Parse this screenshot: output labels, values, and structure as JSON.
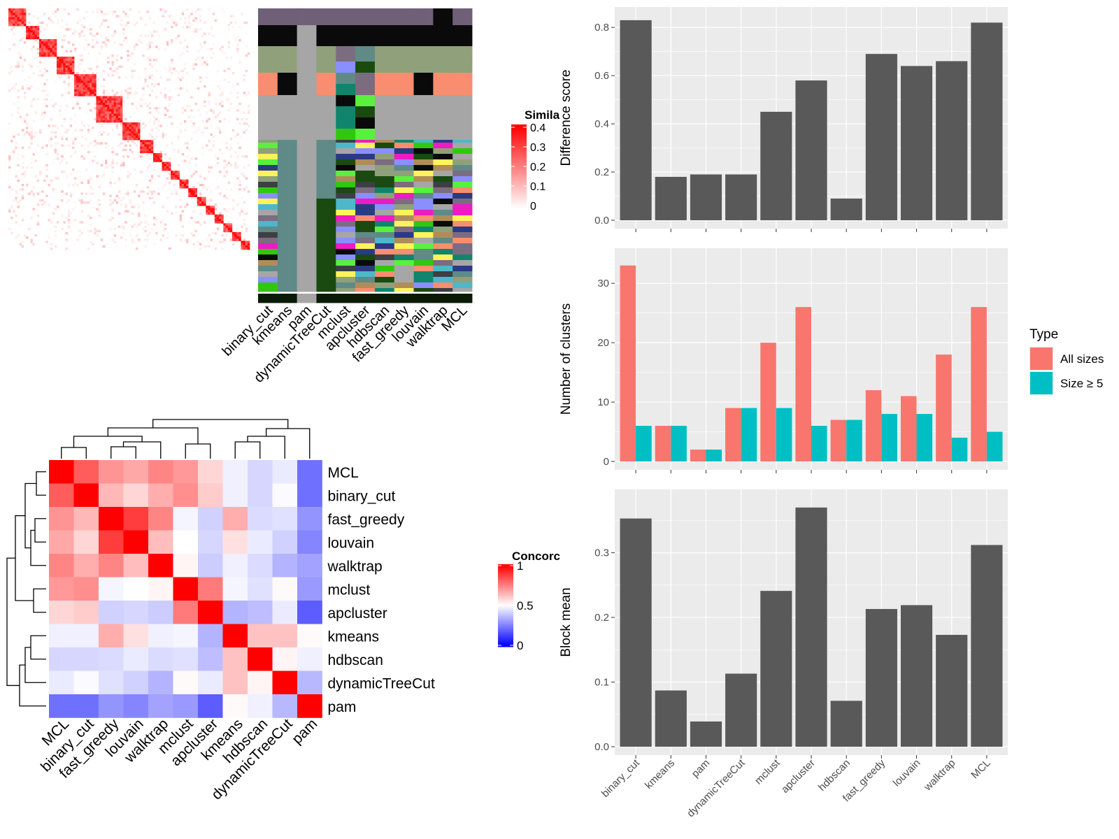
{
  "similarity_legend": {
    "title": "Simila",
    "ticks": [
      "0.4",
      "0.3",
      "0.2",
      "0.1",
      "0"
    ]
  },
  "concordance_legend": {
    "title": "Concorc",
    "ticks": [
      "1",
      "0.5",
      "0"
    ]
  },
  "methods_top": [
    "binary_cut",
    "kmeans",
    "pam",
    "dynamicTreeCut",
    "mclust",
    "apcluster",
    "hdbscan",
    "fast_greedy",
    "louvain",
    "walktrap",
    "MCL"
  ],
  "methods_heatmap": [
    "MCL",
    "binary_cut",
    "fast_greedy",
    "louvain",
    "walktrap",
    "mclust",
    "apcluster",
    "kmeans",
    "hdbscan",
    "dynamicTreeCut",
    "pam"
  ],
  "type_legend": {
    "title": "Type",
    "entries": [
      {
        "label": "All sizes",
        "color": "#F8766D"
      },
      {
        "label": "Size ≥ 5",
        "color": "#00BFC4"
      }
    ]
  },
  "chart_data": [
    {
      "type": "bar",
      "categories": [
        "binary_cut",
        "kmeans",
        "pam",
        "dynamicTreeCut",
        "mclust",
        "apcluster",
        "hdbscan",
        "fast_greedy",
        "louvain",
        "walktrap",
        "MCL"
      ],
      "values": [
        0.83,
        0.18,
        0.19,
        0.19,
        0.45,
        0.58,
        0.09,
        0.69,
        0.64,
        0.66,
        0.82
      ],
      "ylabel": "Difference score",
      "ylim": [
        0,
        0.85
      ],
      "yticks": [
        "0.0",
        "0.2",
        "0.4",
        "0.6",
        "0.8"
      ],
      "color": "#595959"
    },
    {
      "type": "bar",
      "categories": [
        "binary_cut",
        "kmeans",
        "pam",
        "dynamicTreeCut",
        "mclust",
        "apcluster",
        "hdbscan",
        "fast_greedy",
        "louvain",
        "walktrap",
        "MCL"
      ],
      "series": [
        {
          "name": "All sizes",
          "values": [
            33,
            6,
            2,
            9,
            20,
            26,
            7,
            12,
            11,
            18,
            26
          ]
        },
        {
          "name": "Size ≥ 5",
          "values": [
            6,
            6,
            2,
            9,
            9,
            6,
            7,
            8,
            8,
            4,
            5
          ]
        }
      ],
      "ylabel": "Number of clusters",
      "ylim": [
        0,
        34.5
      ],
      "yticks": [
        "0",
        "10",
        "20",
        "30"
      ]
    },
    {
      "type": "bar",
      "categories": [
        "binary_cut",
        "kmeans",
        "pam",
        "dynamicTreeCut",
        "mclust",
        "apcluster",
        "hdbscan",
        "fast_greedy",
        "louvain",
        "walktrap",
        "MCL"
      ],
      "values": [
        0.353,
        0.087,
        0.039,
        0.113,
        0.241,
        0.37,
        0.071,
        0.213,
        0.219,
        0.173,
        0.312
      ],
      "ylabel": "Block mean",
      "ylim": [
        0,
        0.385
      ],
      "yticks": [
        "0.0",
        "0.1",
        "0.2",
        "0.3"
      ],
      "color": "#595959"
    },
    {
      "type": "heatmap",
      "rows": [
        "MCL",
        "binary_cut",
        "fast_greedy",
        "louvain",
        "walktrap",
        "mclust",
        "apcluster",
        "kmeans",
        "hdbscan",
        "dynamicTreeCut",
        "pam"
      ],
      "cols": [
        "MCL",
        "binary_cut",
        "fast_greedy",
        "louvain",
        "walktrap",
        "mclust",
        "apcluster",
        "kmeans",
        "hdbscan",
        "dynamicTreeCut",
        "pam"
      ],
      "values": [
        [
          1.0,
          0.82,
          0.71,
          0.67,
          0.74,
          0.7,
          0.58,
          0.47,
          0.42,
          0.46,
          0.22
        ],
        [
          0.82,
          1.0,
          0.64,
          0.58,
          0.66,
          0.72,
          0.6,
          0.47,
          0.42,
          0.49,
          0.22
        ],
        [
          0.71,
          0.64,
          1.0,
          0.88,
          0.74,
          0.48,
          0.41,
          0.66,
          0.43,
          0.44,
          0.29
        ],
        [
          0.67,
          0.58,
          0.88,
          1.0,
          0.63,
          0.5,
          0.42,
          0.56,
          0.46,
          0.41,
          0.26
        ],
        [
          0.74,
          0.66,
          0.74,
          0.63,
          1.0,
          0.52,
          0.4,
          0.47,
          0.43,
          0.35,
          0.32
        ],
        [
          0.7,
          0.72,
          0.48,
          0.5,
          0.52,
          1.0,
          0.76,
          0.48,
          0.44,
          0.51,
          0.3
        ],
        [
          0.58,
          0.6,
          0.41,
          0.42,
          0.4,
          0.76,
          1.0,
          0.35,
          0.37,
          0.46,
          0.18
        ],
        [
          0.47,
          0.47,
          0.66,
          0.56,
          0.47,
          0.48,
          0.35,
          1.0,
          0.62,
          0.62,
          0.51
        ],
        [
          0.42,
          0.42,
          0.43,
          0.46,
          0.43,
          0.44,
          0.37,
          0.62,
          1.0,
          0.52,
          0.47
        ],
        [
          0.46,
          0.49,
          0.44,
          0.41,
          0.35,
          0.51,
          0.46,
          0.62,
          0.52,
          1.0,
          0.36
        ],
        [
          0.22,
          0.22,
          0.29,
          0.26,
          0.32,
          0.3,
          0.18,
          0.51,
          0.47,
          0.36,
          1.0
        ]
      ],
      "color_range": [
        0,
        1
      ]
    }
  ]
}
